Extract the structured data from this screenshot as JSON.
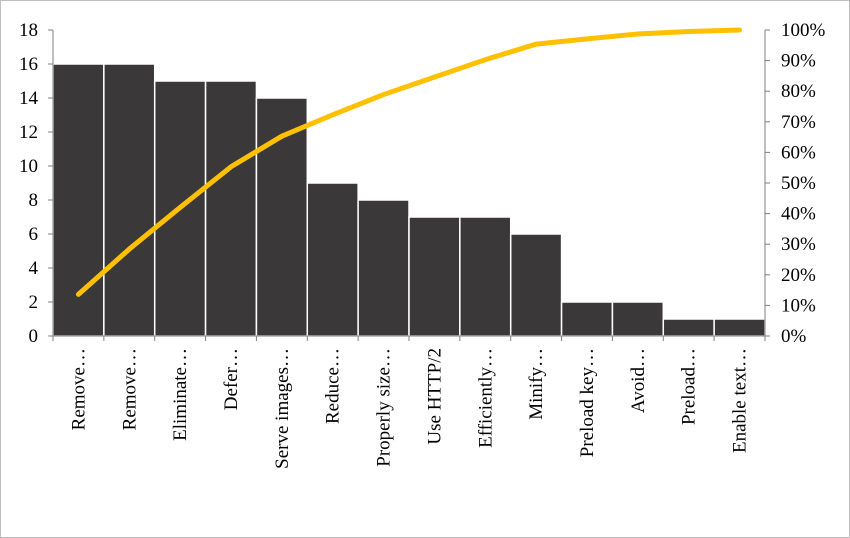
{
  "chart_data": {
    "type": "bar",
    "title": "",
    "xlabel": "",
    "ylabel": "",
    "categories": [
      "Remove…",
      "Remove…",
      "Eliminate…",
      "Defer…",
      "Serve images…",
      "Reduce…",
      "Properly size…",
      "Use HTTP/2",
      "Efficiently…",
      "Minify…",
      "Preload key…",
      "Avoid…",
      "Preload…",
      "Enable text…"
    ],
    "series": [
      {
        "type": "bar",
        "axis": "left",
        "color": "#3a3838",
        "values": [
          16,
          16,
          15,
          15,
          14,
          9,
          8,
          7,
          7,
          6,
          2,
          2,
          1,
          1
        ]
      },
      {
        "type": "line",
        "axis": "right",
        "color": "#ffc000",
        "values": [
          13.6,
          28.4,
          42.0,
          55.3,
          65.3,
          72.3,
          78.9,
          84.6,
          90.3,
          95.4,
          97.1,
          98.7,
          99.5,
          100
        ]
      }
    ],
    "ylim": [
      0,
      18
    ],
    "yticks": [
      0,
      2,
      4,
      6,
      8,
      10,
      12,
      14,
      16,
      18
    ],
    "y2lim": [
      0,
      100
    ],
    "y2ticks": [
      "0%",
      "10%",
      "20%",
      "30%",
      "40%",
      "50%",
      "60%",
      "70%",
      "80%",
      "90%",
      "100%"
    ],
    "grid": false,
    "legend": "none"
  }
}
